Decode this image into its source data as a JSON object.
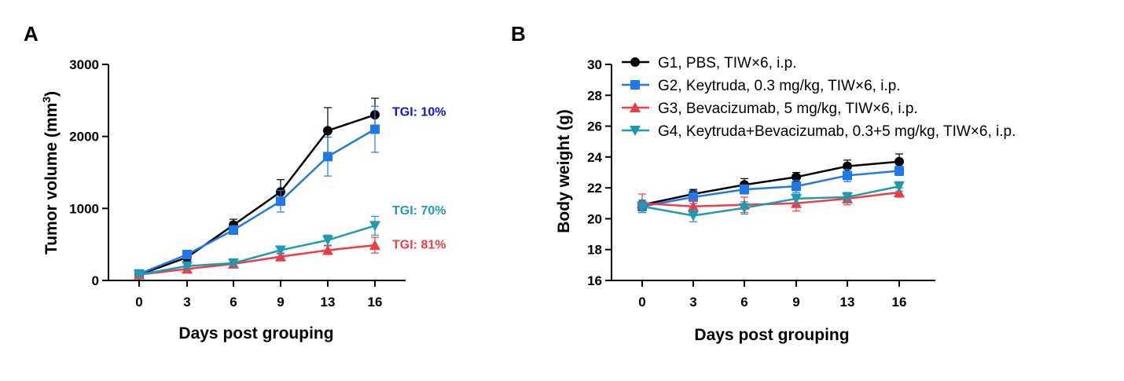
{
  "chart_data": [
    {
      "panel": "A",
      "type": "line",
      "xlabel": "Days post grouping",
      "ylabel": "Tumor volume (mm",
      "ylabel_superscript": "3",
      "ylabel_suffix": ")",
      "x": [
        0,
        3,
        6,
        9,
        13,
        16
      ],
      "x_tick_labels": [
        "0",
        "3",
        "6",
        "9",
        "13",
        "16"
      ],
      "ylim": [
        0,
        3000
      ],
      "y_ticks": [
        0,
        1000,
        2000,
        3000
      ],
      "y_tick_labels": [
        "0",
        "1000",
        "2000",
        "3000"
      ],
      "series": [
        {
          "values": [
            80,
            320,
            770,
            1230,
            2080,
            2300
          ],
          "err": [
            20,
            50,
            80,
            170,
            320,
            230
          ],
          "color": "#000000",
          "marker": "circle"
        },
        {
          "values": [
            90,
            360,
            700,
            1100,
            1720,
            2100
          ],
          "err": [
            25,
            50,
            60,
            150,
            270,
            320
          ],
          "color": "#1f78e8",
          "marker": "square"
        },
        {
          "values": [
            80,
            160,
            230,
            330,
            420,
            490
          ],
          "err": [
            20,
            30,
            30,
            40,
            60,
            110
          ],
          "color": "#f03c46",
          "marker": "triangle-up"
        },
        {
          "values": [
            80,
            200,
            240,
            420,
            560,
            760
          ],
          "err": [
            20,
            30,
            40,
            40,
            70,
            130
          ],
          "color": "#1f9bb0",
          "marker": "triangle-down"
        }
      ],
      "annotations": [
        {
          "text": "TGI: 10%",
          "color": "#1010e0",
          "y": 2350
        },
        {
          "text": "TGI: 70%",
          "color": "#1f9bb0",
          "y": 980
        },
        {
          "text": "TGI: 81%",
          "color": "#f03c46",
          "y": 510
        }
      ]
    },
    {
      "panel": "B",
      "type": "line",
      "xlabel": "Days post grouping",
      "ylabel": "Body weight (g)",
      "x": [
        0,
        3,
        6,
        9,
        13,
        16
      ],
      "x_tick_labels": [
        "0",
        "3",
        "6",
        "9",
        "13",
        "16"
      ],
      "ylim": [
        16,
        30
      ],
      "y_ticks": [
        16,
        18,
        20,
        22,
        24,
        26,
        28,
        30
      ],
      "y_tick_labels": [
        "16",
        "18",
        "20",
        "22",
        "24",
        "26",
        "28",
        "30"
      ],
      "legend_position": "top",
      "series": [
        {
          "name": "G1, PBS, TIW×6, i.p.",
          "values": [
            20.9,
            21.6,
            22.2,
            22.7,
            23.4,
            23.7
          ],
          "err": [
            0.3,
            0.3,
            0.4,
            0.3,
            0.4,
            0.5
          ],
          "color": "#000000",
          "marker": "circle"
        },
        {
          "name": "G2, Keytruda, 0.3 mg/kg, TIW×6, i.p.",
          "values": [
            20.8,
            21.4,
            21.9,
            22.1,
            22.8,
            23.1
          ],
          "err": [
            0.3,
            0.4,
            0.3,
            0.4,
            0.4,
            0.3
          ],
          "color": "#1f78e8",
          "marker": "square"
        },
        {
          "name": "G3, Bevacizumab, 5 mg/kg, TIW×6, i.p.",
          "values": [
            21.0,
            20.8,
            20.9,
            21.0,
            21.3,
            21.7
          ],
          "err": [
            0.6,
            0.4,
            0.5,
            0.5,
            0.4,
            0.3
          ],
          "color": "#f03c46",
          "marker": "triangle-up"
        },
        {
          "name": "G4, Keytruda+Bevacizumab, 0.3+5 mg/kg, TIW×6, i.p.",
          "values": [
            20.8,
            20.2,
            20.7,
            21.3,
            21.4,
            22.1
          ],
          "err": [
            0.4,
            0.4,
            0.4,
            0.3,
            0.3,
            0.3
          ],
          "color": "#1f9bb0",
          "marker": "triangle-down"
        }
      ]
    }
  ]
}
